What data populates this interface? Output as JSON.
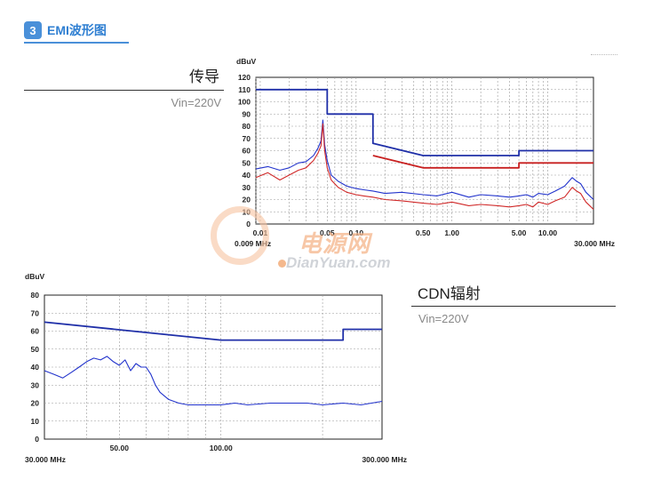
{
  "section": {
    "number": "3",
    "title": "EMI波形图"
  },
  "conducted": {
    "label": "传导",
    "vin": "Vin=220V"
  },
  "radiated": {
    "label": "CDN辐射",
    "vin": "Vin=220V"
  },
  "watermark": {
    "cn": "电源网",
    "en": "DianYuan.com"
  },
  "colors": {
    "limit": "#1f2fa8",
    "trace_blue": "#2233cc",
    "trace_red": "#d02828",
    "grid": "#999999"
  },
  "chart_data": [
    {
      "type": "line",
      "ylabel": "dBuV",
      "x_scale": "log",
      "xlim": [
        0.009,
        30
      ],
      "ylim": [
        0,
        120
      ],
      "y_ticks": [
        0,
        10,
        20,
        30,
        40,
        50,
        60,
        70,
        80,
        90,
        100,
        110,
        120
      ],
      "x_ticks": [
        {
          "v": 0.01,
          "label": "0.01"
        },
        {
          "v": 0.05,
          "label": "0.05"
        },
        {
          "v": 0.1,
          "label": "0.10"
        },
        {
          "v": 0.5,
          "label": "0.50"
        },
        {
          "v": 1,
          "label": "1.00"
        },
        {
          "v": 5,
          "label": "5.00"
        },
        {
          "v": 10,
          "label": "10.00"
        }
      ],
      "x_start_label": "0.009 MHz",
      "x_end_label": "30.000 MHz",
      "series": [
        {
          "role": "limit-upper",
          "color": "#1f2fa8",
          "x": [
            0.009,
            0.05,
            0.05,
            0.15,
            0.15,
            0.5,
            5,
            5,
            30
          ],
          "y": [
            110,
            110,
            90,
            90,
            66,
            56,
            56,
            60,
            60
          ]
        },
        {
          "role": "limit-lower",
          "color": "#c82020",
          "x": [
            0.15,
            0.5,
            5,
            5,
            30
          ],
          "y": [
            56,
            46,
            46,
            50,
            50
          ]
        },
        {
          "role": "scan-blue",
          "color": "#2233cc",
          "x": [
            0.009,
            0.012,
            0.016,
            0.02,
            0.025,
            0.03,
            0.036,
            0.04,
            0.043,
            0.045,
            0.047,
            0.05,
            0.055,
            0.065,
            0.08,
            0.1,
            0.12,
            0.15,
            0.2,
            0.3,
            0.5,
            0.7,
            1,
            1.5,
            2,
            3,
            4,
            5,
            6,
            7,
            8,
            10,
            12,
            15,
            18,
            20,
            22,
            25,
            30
          ],
          "y": [
            45,
            47,
            44,
            46,
            50,
            51,
            56,
            62,
            68,
            85,
            65,
            52,
            40,
            35,
            31,
            29,
            28,
            27,
            25,
            26,
            24,
            23,
            26,
            22,
            24,
            23,
            22,
            23,
            24,
            22,
            25,
            24,
            27,
            31,
            38,
            35,
            33,
            26,
            20
          ]
        },
        {
          "role": "scan-red",
          "color": "#d02828",
          "x": [
            0.009,
            0.012,
            0.016,
            0.02,
            0.025,
            0.03,
            0.036,
            0.04,
            0.043,
            0.045,
            0.047,
            0.05,
            0.055,
            0.065,
            0.08,
            0.1,
            0.12,
            0.15,
            0.2,
            0.3,
            0.5,
            0.7,
            1,
            1.5,
            2,
            3,
            4,
            5,
            6,
            7,
            8,
            10,
            12,
            15,
            18,
            20,
            22,
            25,
            30
          ],
          "y": [
            38,
            42,
            36,
            40,
            44,
            46,
            52,
            58,
            64,
            82,
            60,
            46,
            36,
            30,
            26,
            24,
            23,
            22,
            20,
            19,
            17,
            16,
            18,
            15,
            16,
            15,
            14,
            15,
            16,
            14,
            18,
            16,
            19,
            22,
            30,
            27,
            25,
            18,
            12
          ]
        }
      ]
    },
    {
      "type": "line",
      "ylabel": "dBuV",
      "x_scale": "log",
      "xlim": [
        30,
        300
      ],
      "ylim": [
        0,
        80
      ],
      "y_ticks": [
        0,
        10,
        20,
        30,
        40,
        50,
        60,
        70,
        80
      ],
      "x_ticks": [
        {
          "v": 50,
          "label": "50.00"
        },
        {
          "v": 100,
          "label": "100.00"
        }
      ],
      "x_start_label": "30.000 MHz",
      "x_end_label": "300.000 MHz",
      "series": [
        {
          "role": "limit",
          "color": "#1f2fa8",
          "x": [
            30,
            100,
            230,
            230,
            300
          ],
          "y": [
            65,
            55,
            55,
            61,
            61
          ]
        },
        {
          "role": "scan",
          "color": "#2233cc",
          "x": [
            30,
            32,
            34,
            36,
            38,
            40,
            42,
            44,
            46,
            48,
            50,
            52,
            54,
            56,
            58,
            60,
            62,
            64,
            66,
            70,
            75,
            80,
            90,
            100,
            110,
            120,
            140,
            160,
            180,
            200,
            230,
            260,
            300
          ],
          "y": [
            38,
            36,
            34,
            37,
            40,
            43,
            45,
            44,
            46,
            43,
            41,
            44,
            38,
            42,
            40,
            40,
            36,
            30,
            26,
            22,
            20,
            19,
            19,
            19,
            20,
            19,
            20,
            20,
            20,
            19,
            20,
            19,
            21
          ]
        }
      ]
    }
  ]
}
